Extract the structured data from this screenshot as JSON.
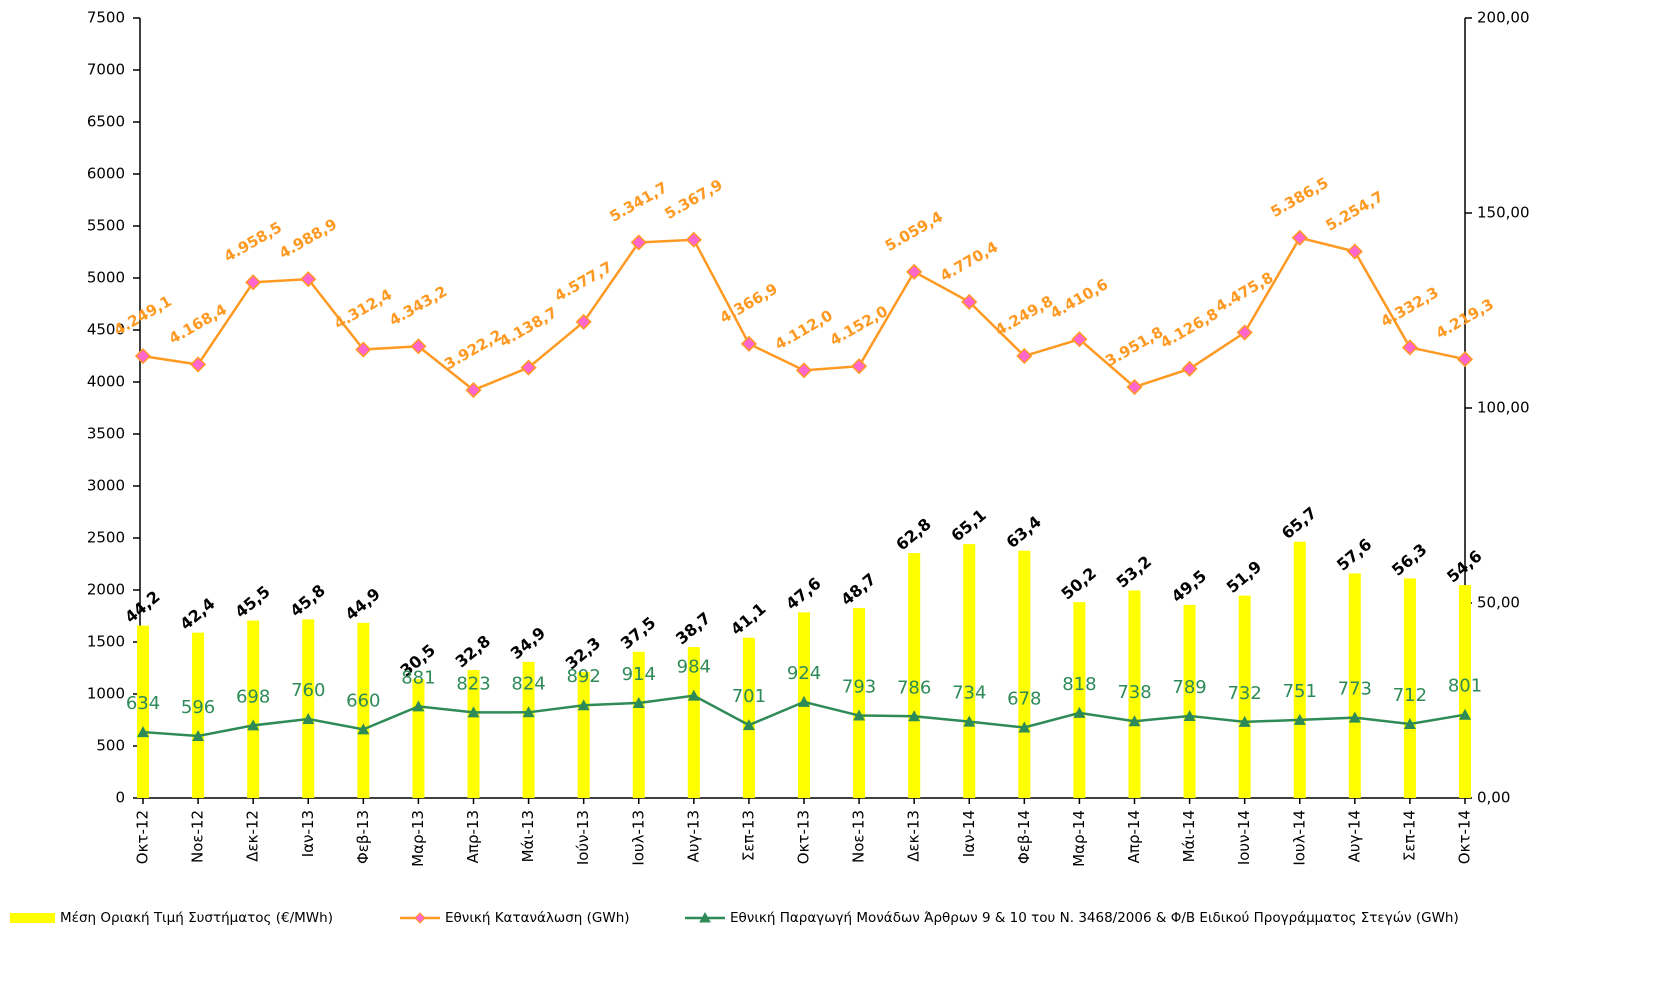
{
  "chart_data": {
    "type": "combo",
    "categories": [
      "Οκτ-12",
      "Νοε-12",
      "Δεκ-12",
      "Ιαν-13",
      "Φεβ-13",
      "Μαρ-13",
      "Απρ-13",
      "Μάι-13",
      "Ιούν-13",
      "Ιουλ-13",
      "Αυγ-13",
      "Σεπ-13",
      "Οκτ-13",
      "Νοε-13",
      "Δεκ-13",
      "Ιαν-14",
      "Φεβ-14",
      "Μαρ-14",
      "Απρ-14",
      "Μάι-14",
      "Ιουν-14",
      "Ιουλ-14",
      "Αυγ-14",
      "Σεπ-14",
      "Οκτ-14"
    ],
    "series": [
      {
        "name": "Μέση Οριακή Τιμή Συστήματος (€/MWh)",
        "type": "bar",
        "axis": "y2",
        "color": "#ffff00",
        "label_color": "#000000",
        "values": [
          44.2,
          42.4,
          45.5,
          45.8,
          44.9,
          30.5,
          32.8,
          34.9,
          32.3,
          37.5,
          38.7,
          41.1,
          47.6,
          48.7,
          62.8,
          65.1,
          63.4,
          50.2,
          53.2,
          49.5,
          51.9,
          65.7,
          57.6,
          56.3,
          54.6
        ],
        "value_labels": [
          "44,2",
          "42,4",
          "45,5",
          "45,8",
          "44,9",
          "30,5",
          "32,8",
          "34,9",
          "32,3",
          "37,5",
          "38,7",
          "41,1",
          "47,6",
          "48,7",
          "62,8",
          "65,1",
          "63,4",
          "50,2",
          "53,2",
          "49,5",
          "51,9",
          "65,7",
          "57,6",
          "56,3",
          "54,6"
        ]
      },
      {
        "name": "Εθνική Κατανάλωση (GWh)",
        "type": "line",
        "axis": "y",
        "color": "#ff9922",
        "marker": "diamond",
        "marker_fill": "#ff66cc",
        "label_color": "#ff9922",
        "values": [
          4249.1,
          4168.4,
          4958.5,
          4988.9,
          4312.4,
          4343.2,
          3922.2,
          4138.7,
          4577.7,
          5341.7,
          5367.9,
          4366.9,
          4112.0,
          4152.0,
          5059.4,
          4770.4,
          4249.8,
          4410.6,
          3951.8,
          4126.8,
          4475.8,
          5386.5,
          5254.7,
          4332.3,
          4219.3
        ],
        "value_labels": [
          "4.249,1",
          "4.168,4",
          "4.958,5",
          "4.988,9",
          "4.312,4",
          "4.343,2",
          "3.922,2",
          "4.138,7",
          "4.577,7",
          "5.341,7",
          "5.367,9",
          "4.366,9",
          "4.112,0",
          "4.152,0",
          "5.059,4",
          "4.770,4",
          "4.249,8",
          "4.410,6",
          "3.951,8",
          "4.126,8",
          "4.475,8",
          "5.386,5",
          "5.254,7",
          "4.332,3",
          "4.219,3"
        ]
      },
      {
        "name": "Εθνική Παραγωγή Μονάδων Άρθρων 9 & 10 του Ν. 3468/2006 & Φ/Β Ειδικού Προγράμματος Στεγών (GWh)",
        "type": "line",
        "axis": "y",
        "color": "#2e8b57",
        "marker": "triangle",
        "marker_fill": "#2e8b57",
        "label_color": "#2e8b57",
        "values": [
          634,
          596,
          698,
          760,
          660,
          881,
          823,
          824,
          892,
          914,
          984,
          701,
          924,
          793,
          786,
          734,
          678,
          818,
          738,
          789,
          732,
          751,
          773,
          712,
          801
        ]
      }
    ],
    "ylim": [
      0,
      7500
    ],
    "yticks": [
      0,
      500,
      1000,
      1500,
      2000,
      2500,
      3000,
      3500,
      4000,
      4500,
      5000,
      5500,
      6000,
      6500,
      7000,
      7500
    ],
    "y2lim": [
      0,
      200
    ],
    "y2ticks": [
      {
        "value": 0,
        "label": "0,00"
      },
      {
        "value": 50,
        "label": "50,00"
      },
      {
        "value": 100,
        "label": "100,00"
      },
      {
        "value": 150,
        "label": "150,00"
      },
      {
        "value": 200,
        "label": "200,00"
      }
    ],
    "legend": "bottom"
  }
}
